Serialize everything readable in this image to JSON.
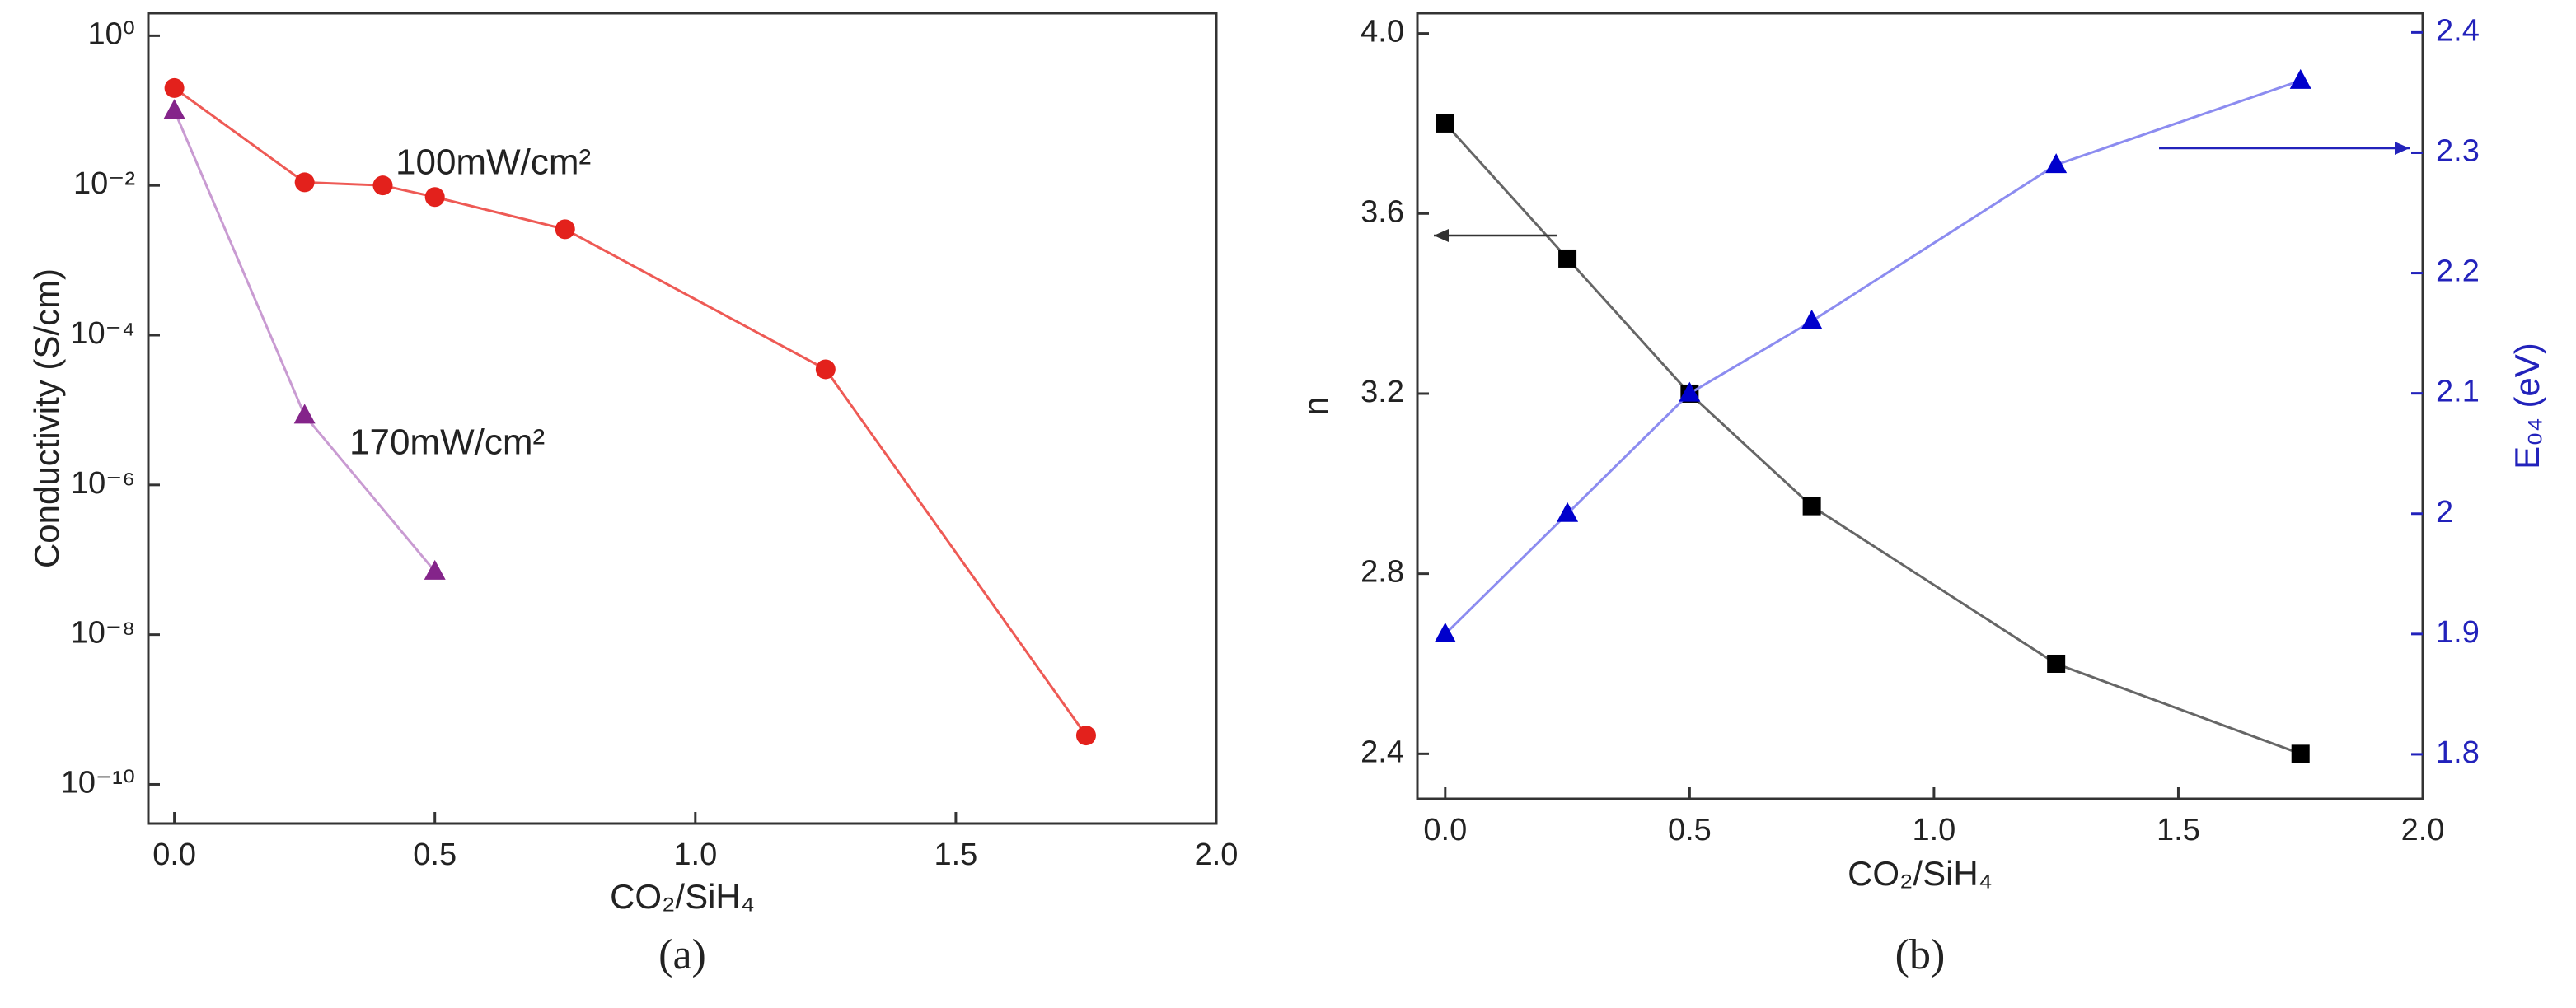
{
  "chart_data": [
    {
      "type": "line",
      "panel_label": "(a)",
      "xlabel": "CO₂/SiH₄",
      "ylabel": "Conductivity (S/cm)",
      "ylog": true,
      "xlim": [
        -0.05,
        2.0
      ],
      "xticks": [
        {
          "value": 0,
          "label": "0.0"
        },
        {
          "value": 0.5,
          "label": "0.5"
        },
        {
          "value": 1,
          "label": "1.0"
        },
        {
          "value": 1.5,
          "label": "1.5"
        },
        {
          "value": 2,
          "label": "2.0"
        }
      ],
      "ylim": [
        3e-11,
        2
      ],
      "yticks": [
        {
          "value": 1e-10,
          "label": "10⁻¹⁰"
        },
        {
          "value": 1e-08,
          "label": "10⁻⁸"
        },
        {
          "value": 1e-06,
          "label": "10⁻⁶"
        },
        {
          "value": 0.0001,
          "label": "10⁻⁴"
        },
        {
          "value": 0.01,
          "label": "10⁻²"
        },
        {
          "value": 1,
          "label": "10⁰"
        }
      ],
      "series": [
        {
          "name": "100mW/cm²",
          "color": "#e3211c",
          "line_color": "#ee5a55",
          "marker": "circle",
          "x": [
            0,
            0.25,
            0.4,
            0.5,
            0.75,
            1.25,
            1.75
          ],
          "values": [
            0.2,
            0.011,
            0.01,
            0.007,
            0.0026,
            3.5e-05,
            4.5e-10
          ]
        },
        {
          "name": "170mW/cm²",
          "color": "#84248a",
          "line_color": "#c99bd2",
          "marker": "triangle",
          "x": [
            0,
            0.25,
            0.5
          ],
          "values": [
            0.1,
            8.5e-06,
            7e-08
          ]
        }
      ]
    },
    {
      "type": "line",
      "panel_label": "(b)",
      "xlabel": "CO₂/SiH₄",
      "ylabel": "n",
      "y2label": "E₀₄ (eV)",
      "y2color": "#2222bb",
      "xlim": [
        -0.057,
        2.0
      ],
      "xticks": [
        {
          "value": 0,
          "label": "0.0"
        },
        {
          "value": 0.5,
          "label": "0.5"
        },
        {
          "value": 1,
          "label": "1.0"
        },
        {
          "value": 1.5,
          "label": "1.5"
        },
        {
          "value": 2,
          "label": "2.0"
        }
      ],
      "ylim": [
        2.3,
        4.045
      ],
      "yticks": [
        {
          "value": 2.4,
          "label": "2.4"
        },
        {
          "value": 2.8,
          "label": "2.8"
        },
        {
          "value": 3.2,
          "label": "3.2"
        },
        {
          "value": 3.6,
          "label": "3.6"
        },
        {
          "value": 4,
          "label": "4.0"
        }
      ],
      "y2lim": [
        1.763,
        2.416
      ],
      "y2ticks": [
        1.8,
        1.9,
        2,
        2.1,
        2.2,
        2.3,
        2.4
      ],
      "series": [
        {
          "name": "n",
          "color": "#000000",
          "line_color": "#666666",
          "marker": "square",
          "x": [
            0,
            0.25,
            0.5,
            0.75,
            1.25,
            1.75
          ],
          "values": [
            3.8,
            3.5,
            3.2,
            2.95,
            2.6,
            2.4
          ]
        },
        {
          "name": "E₀₄",
          "axis": "y2",
          "color": "#0000cc",
          "line_color": "#8c8cf0",
          "marker": "triangle",
          "x": [
            0,
            0.25,
            0.5,
            0.75,
            1.25,
            1.75
          ],
          "values": [
            1.9,
            2.0,
            2.1,
            2.16,
            2.29,
            2.36
          ]
        }
      ]
    }
  ]
}
